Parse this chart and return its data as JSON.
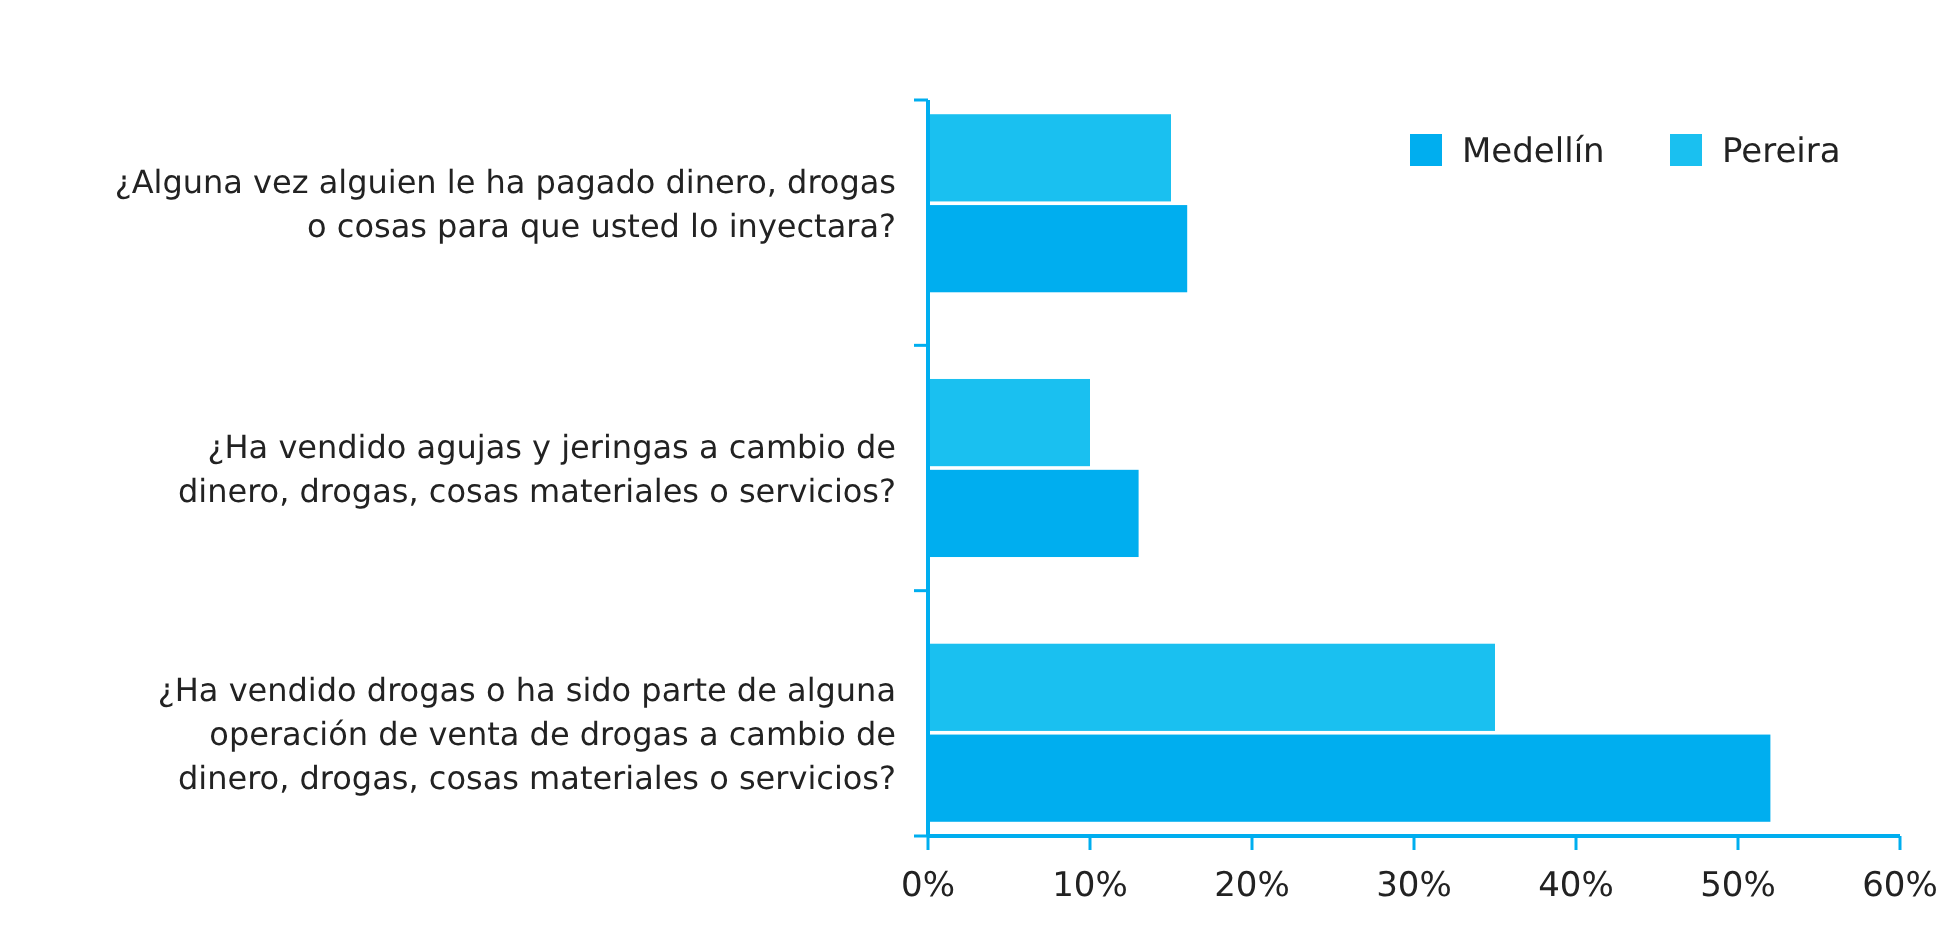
{
  "chart_data": {
    "type": "bar",
    "orientation": "horizontal",
    "categories": [
      "¿Alguna vez alguien le ha pagado dinero, drogas o cosas para que usted lo inyectara?",
      "¿Ha vendido agujas y jeringas a cambio de dinero, drogas, cosas materiales o servicios?",
      "¿Ha vendido drogas o ha sido parte de alguna operación de venta de drogas a cambio de dinero, drogas, cosas materiales o servicios?"
    ],
    "series": [
      {
        "name": "Medellín",
        "color": "#00aeef",
        "values": [
          16,
          13,
          52
        ]
      },
      {
        "name": "Pereira",
        "color": "#1ac0f0",
        "values": [
          15,
          10,
          35
        ]
      }
    ],
    "xlim": [
      0,
      60
    ],
    "xticks": [
      {
        "value": 0,
        "label": "0%"
      },
      {
        "value": 10,
        "label": "10%"
      },
      {
        "value": 20,
        "label": "20%"
      },
      {
        "value": 30,
        "label": "30%"
      },
      {
        "value": 40,
        "label": "40%"
      },
      {
        "value": 50,
        "label": "50%"
      },
      {
        "value": 60,
        "label": "60%"
      }
    ],
    "legend": "top right"
  }
}
